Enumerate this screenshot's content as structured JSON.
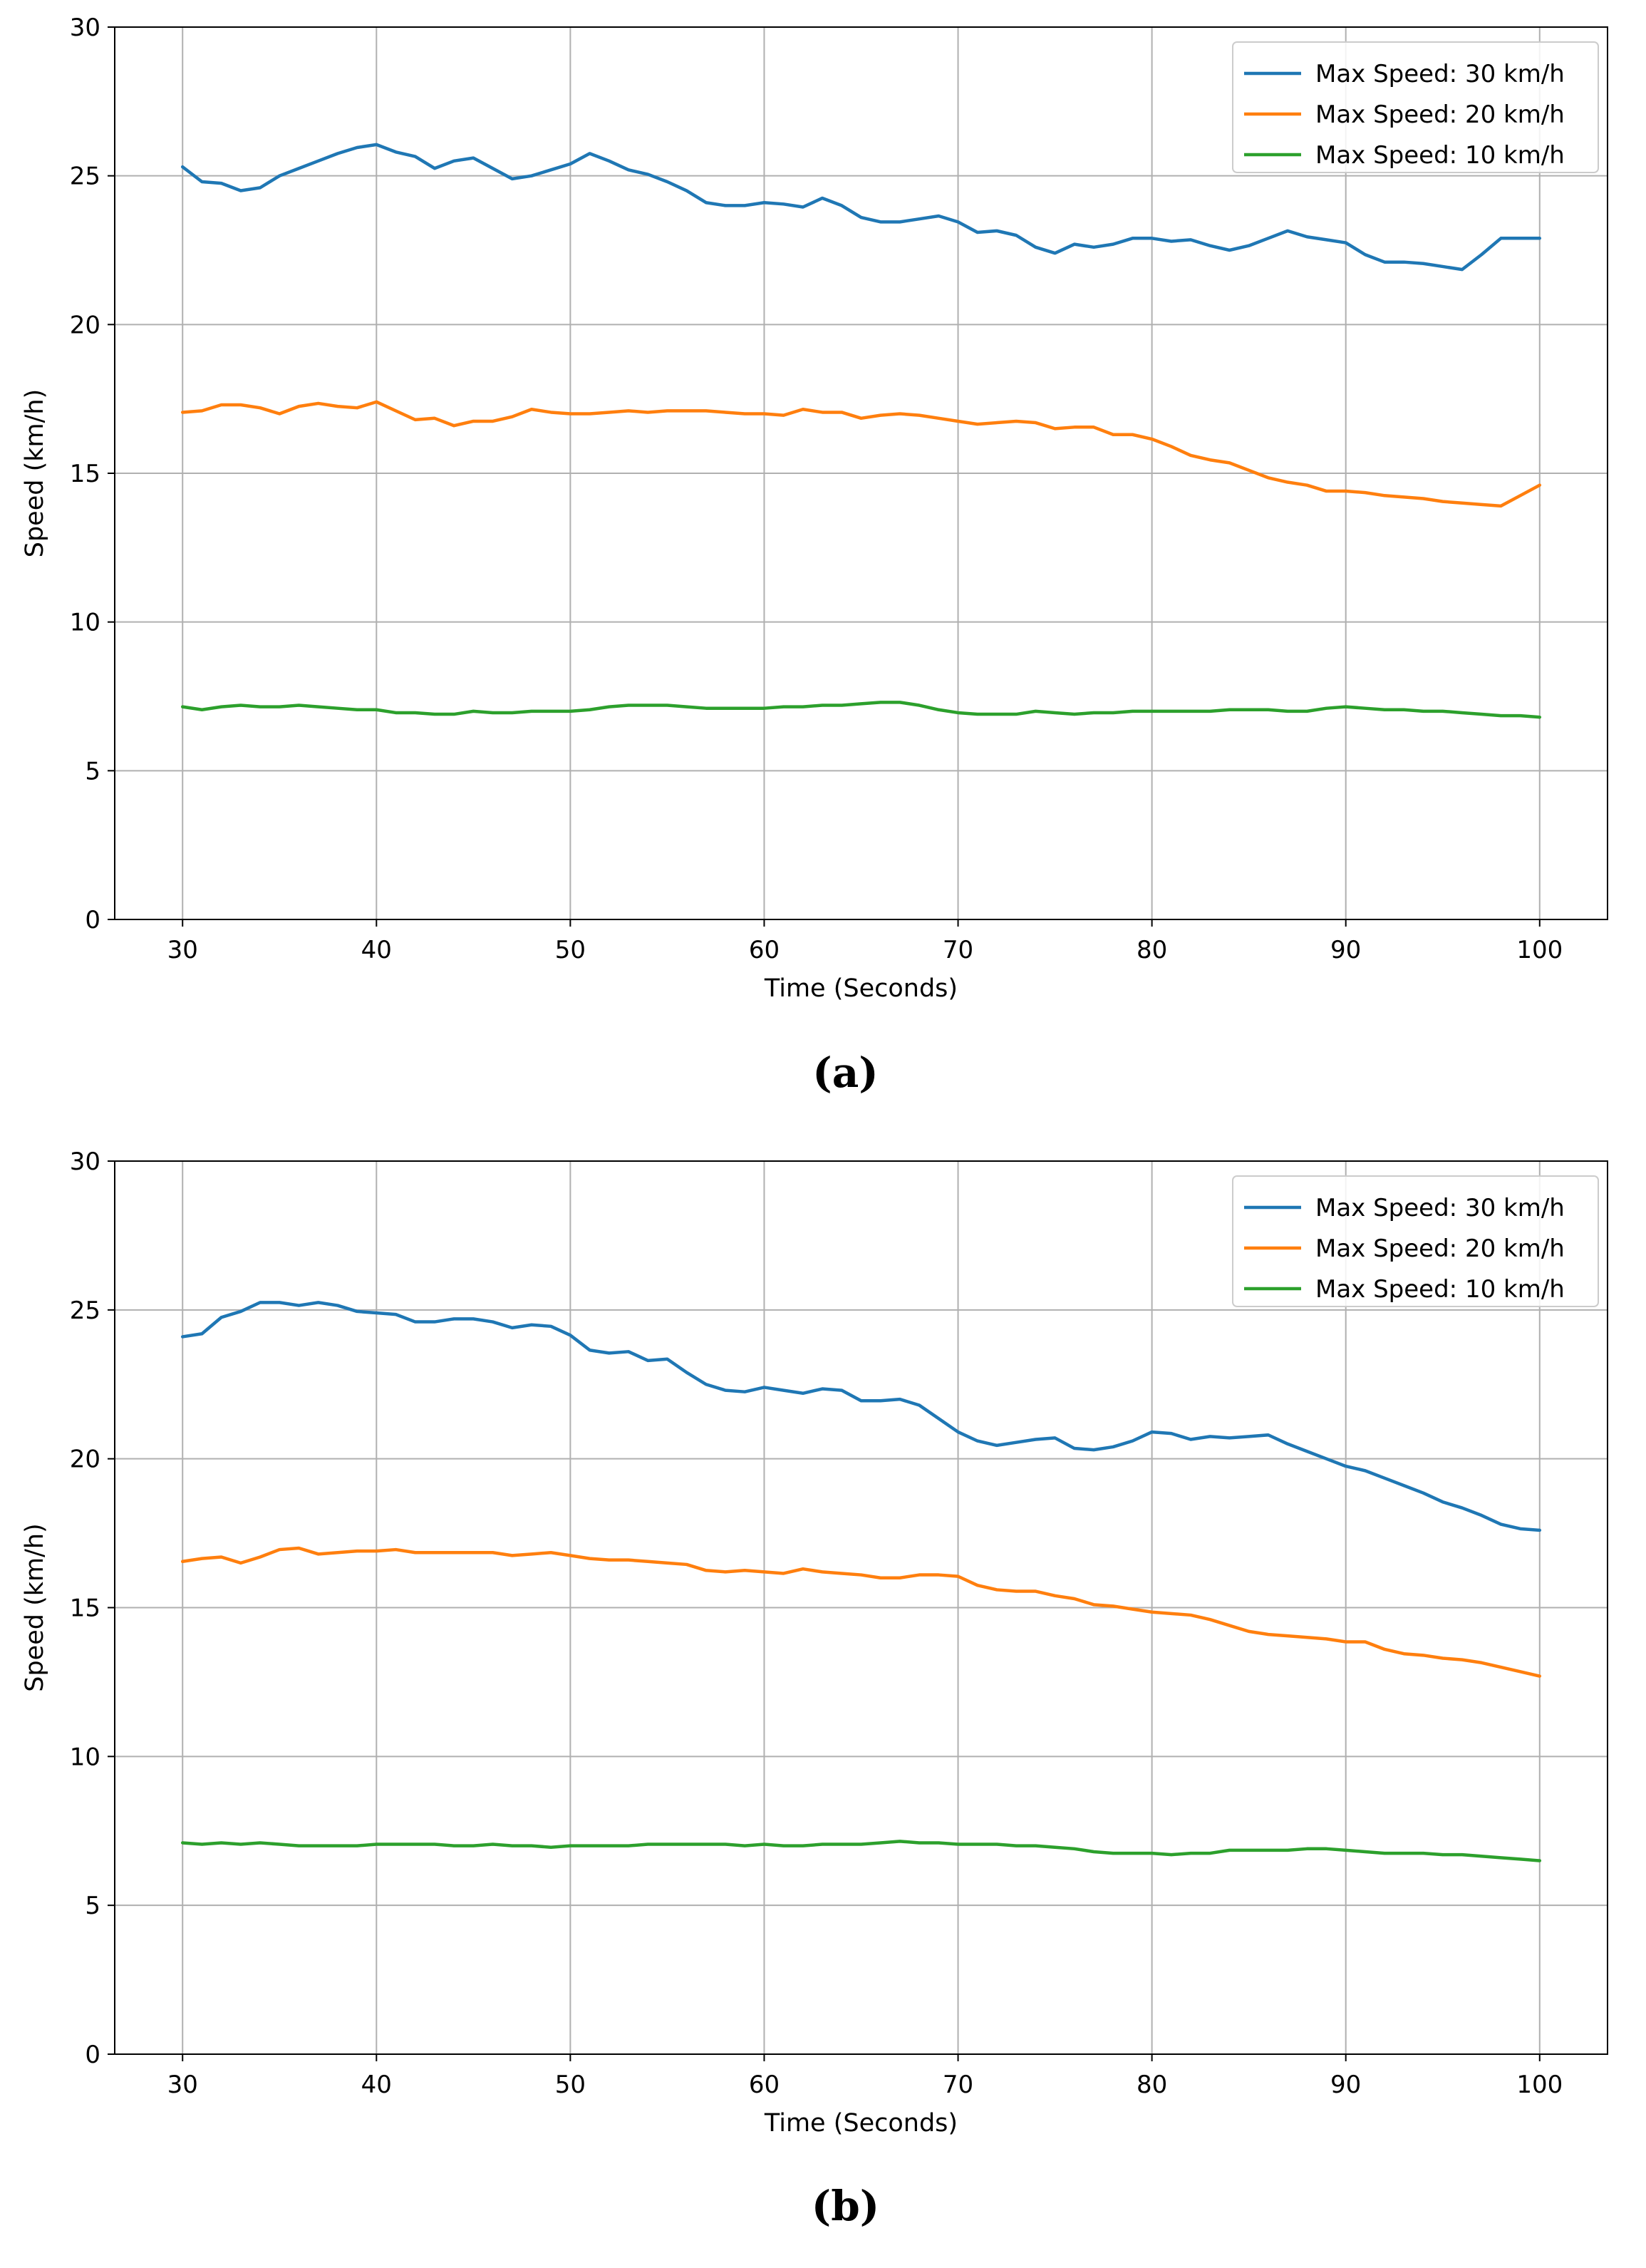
{
  "chart_data": [
    {
      "type": "line",
      "panel_label": "(a)",
      "xlabel": "Time (Seconds)",
      "ylabel": "Speed (km/h)",
      "xlim": [
        26.5,
        103.5
      ],
      "ylim": [
        0,
        30
      ],
      "xticks": [
        30,
        40,
        50,
        60,
        70,
        80,
        90,
        100
      ],
      "yticks": [
        0,
        5,
        10,
        15,
        20,
        25,
        30
      ],
      "grid": true,
      "legend_position": "top-right",
      "x": [
        30,
        31,
        32,
        33,
        34,
        35,
        36,
        37,
        38,
        39,
        40,
        41,
        42,
        43,
        44,
        45,
        46,
        47,
        48,
        49,
        50,
        51,
        52,
        53,
        54,
        55,
        56,
        57,
        58,
        59,
        60,
        61,
        62,
        63,
        64,
        65,
        66,
        67,
        68,
        69,
        70,
        71,
        72,
        73,
        74,
        75,
        76,
        77,
        78,
        79,
        80,
        81,
        82,
        83,
        84,
        85,
        86,
        87,
        88,
        89,
        90,
        91,
        92,
        93,
        94,
        95,
        96,
        97,
        98,
        99,
        100
      ],
      "series": [
        {
          "name": "Max Speed: 30 km/h",
          "color": "#1f77b4",
          "values": [
            25.3,
            24.8,
            24.75,
            24.5,
            24.6,
            25.0,
            25.25,
            25.5,
            25.75,
            25.95,
            26.05,
            25.8,
            25.65,
            25.25,
            25.5,
            25.6,
            25.25,
            24.9,
            25.0,
            25.2,
            25.4,
            25.75,
            25.5,
            25.2,
            25.05,
            24.8,
            24.5,
            24.1,
            24.0,
            24.0,
            24.1,
            24.05,
            23.95,
            24.25,
            24.0,
            23.6,
            23.45,
            23.45,
            23.55,
            23.65,
            23.45,
            23.1,
            23.15,
            23.0,
            22.6,
            22.4,
            22.7,
            22.6,
            22.7,
            22.9,
            22.9,
            22.8,
            22.85,
            22.65,
            22.5,
            22.65,
            22.9,
            23.15,
            22.95,
            22.85,
            22.75,
            22.35,
            22.1,
            22.1,
            22.05,
            21.95,
            21.85,
            22.35,
            22.9,
            22.9,
            22.9
          ]
        },
        {
          "name": "Max Speed: 20 km/h",
          "color": "#ff7f0e",
          "values": [
            17.05,
            17.1,
            17.3,
            17.3,
            17.2,
            17.0,
            17.25,
            17.35,
            17.25,
            17.2,
            17.4,
            17.1,
            16.8,
            16.85,
            16.6,
            16.75,
            16.75,
            16.9,
            17.15,
            17.05,
            17.0,
            17.0,
            17.05,
            17.1,
            17.05,
            17.1,
            17.1,
            17.1,
            17.05,
            17.0,
            17.0,
            16.95,
            17.15,
            17.05,
            17.05,
            16.85,
            16.95,
            17.0,
            16.95,
            16.85,
            16.75,
            16.65,
            16.7,
            16.75,
            16.7,
            16.5,
            16.55,
            16.55,
            16.3,
            16.3,
            16.15,
            15.9,
            15.6,
            15.45,
            15.35,
            15.1,
            14.85,
            14.7,
            14.6,
            14.4,
            14.4,
            14.35,
            14.25,
            14.2,
            14.15,
            14.05,
            14.0,
            13.95,
            13.9,
            14.25,
            14.6
          ]
        },
        {
          "name": "Max Speed: 10 km/h",
          "color": "#2ca02c",
          "values": [
            7.15,
            7.05,
            7.15,
            7.2,
            7.15,
            7.15,
            7.2,
            7.15,
            7.1,
            7.05,
            7.05,
            6.95,
            6.95,
            6.9,
            6.9,
            7.0,
            6.95,
            6.95,
            7.0,
            7.0,
            7.0,
            7.05,
            7.15,
            7.2,
            7.2,
            7.2,
            7.15,
            7.1,
            7.1,
            7.1,
            7.1,
            7.15,
            7.15,
            7.2,
            7.2,
            7.25,
            7.3,
            7.3,
            7.2,
            7.05,
            6.95,
            6.9,
            6.9,
            6.9,
            7.0,
            6.95,
            6.9,
            6.95,
            6.95,
            7.0,
            7.0,
            7.0,
            7.0,
            7.0,
            7.05,
            7.05,
            7.05,
            7.0,
            7.0,
            7.1,
            7.15,
            7.1,
            7.05,
            7.05,
            7.0,
            7.0,
            6.95,
            6.9,
            6.85,
            6.85,
            6.8
          ]
        }
      ]
    },
    {
      "type": "line",
      "panel_label": "(b)",
      "xlabel": "Time (Seconds)",
      "ylabel": "Speed (km/h)",
      "xlim": [
        26.5,
        103.5
      ],
      "ylim": [
        0,
        30
      ],
      "xticks": [
        30,
        40,
        50,
        60,
        70,
        80,
        90,
        100
      ],
      "yticks": [
        0,
        5,
        10,
        15,
        20,
        25,
        30
      ],
      "grid": true,
      "legend_position": "top-right",
      "x": [
        30,
        31,
        32,
        33,
        34,
        35,
        36,
        37,
        38,
        39,
        40,
        41,
        42,
        43,
        44,
        45,
        46,
        47,
        48,
        49,
        50,
        51,
        52,
        53,
        54,
        55,
        56,
        57,
        58,
        59,
        60,
        61,
        62,
        63,
        64,
        65,
        66,
        67,
        68,
        69,
        70,
        71,
        72,
        73,
        74,
        75,
        76,
        77,
        78,
        79,
        80,
        81,
        82,
        83,
        84,
        85,
        86,
        87,
        88,
        89,
        90,
        91,
        92,
        93,
        94,
        95,
        96,
        97,
        98,
        99,
        100
      ],
      "series": [
        {
          "name": "Max Speed: 30 km/h",
          "color": "#1f77b4",
          "values": [
            24.1,
            24.2,
            24.75,
            24.95,
            25.25,
            25.25,
            25.15,
            25.25,
            25.15,
            24.95,
            24.9,
            24.85,
            24.6,
            24.6,
            24.7,
            24.7,
            24.6,
            24.4,
            24.5,
            24.45,
            24.15,
            23.65,
            23.55,
            23.6,
            23.3,
            23.35,
            22.9,
            22.5,
            22.3,
            22.25,
            22.4,
            22.3,
            22.2,
            22.35,
            22.3,
            21.95,
            21.95,
            22.0,
            21.8,
            21.35,
            20.9,
            20.6,
            20.45,
            20.55,
            20.65,
            20.7,
            20.35,
            20.3,
            20.4,
            20.6,
            20.9,
            20.85,
            20.65,
            20.75,
            20.7,
            20.75,
            20.8,
            20.5,
            20.25,
            20.0,
            19.75,
            19.6,
            19.35,
            19.1,
            18.85,
            18.55,
            18.35,
            18.1,
            17.8,
            17.65,
            17.6
          ]
        },
        {
          "name": "Max Speed: 20 km/h",
          "color": "#ff7f0e",
          "values": [
            16.55,
            16.65,
            16.7,
            16.5,
            16.7,
            16.95,
            17.0,
            16.8,
            16.85,
            16.9,
            16.9,
            16.95,
            16.85,
            16.85,
            16.85,
            16.85,
            16.85,
            16.75,
            16.8,
            16.85,
            16.75,
            16.65,
            16.6,
            16.6,
            16.55,
            16.5,
            16.45,
            16.25,
            16.2,
            16.25,
            16.2,
            16.15,
            16.3,
            16.2,
            16.15,
            16.1,
            16.0,
            16.0,
            16.1,
            16.1,
            16.05,
            15.75,
            15.6,
            15.55,
            15.55,
            15.4,
            15.3,
            15.1,
            15.05,
            14.95,
            14.85,
            14.8,
            14.75,
            14.6,
            14.4,
            14.2,
            14.1,
            14.05,
            14.0,
            13.95,
            13.85,
            13.85,
            13.6,
            13.45,
            13.4,
            13.3,
            13.25,
            13.15,
            13.0,
            12.85,
            12.7
          ]
        },
        {
          "name": "Max Speed: 10 km/h",
          "color": "#2ca02c",
          "values": [
            7.1,
            7.05,
            7.1,
            7.05,
            7.1,
            7.05,
            7.0,
            7.0,
            7.0,
            7.0,
            7.05,
            7.05,
            7.05,
            7.05,
            7.0,
            7.0,
            7.05,
            7.0,
            7.0,
            6.95,
            7.0,
            7.0,
            7.0,
            7.0,
            7.05,
            7.05,
            7.05,
            7.05,
            7.05,
            7.0,
            7.05,
            7.0,
            7.0,
            7.05,
            7.05,
            7.05,
            7.1,
            7.15,
            7.1,
            7.1,
            7.05,
            7.05,
            7.05,
            7.0,
            7.0,
            6.95,
            6.9,
            6.8,
            6.75,
            6.75,
            6.75,
            6.7,
            6.75,
            6.75,
            6.85,
            6.85,
            6.85,
            6.85,
            6.9,
            6.9,
            6.85,
            6.8,
            6.75,
            6.75,
            6.75,
            6.7,
            6.7,
            6.65,
            6.6,
            6.55,
            6.5
          ]
        }
      ]
    }
  ]
}
